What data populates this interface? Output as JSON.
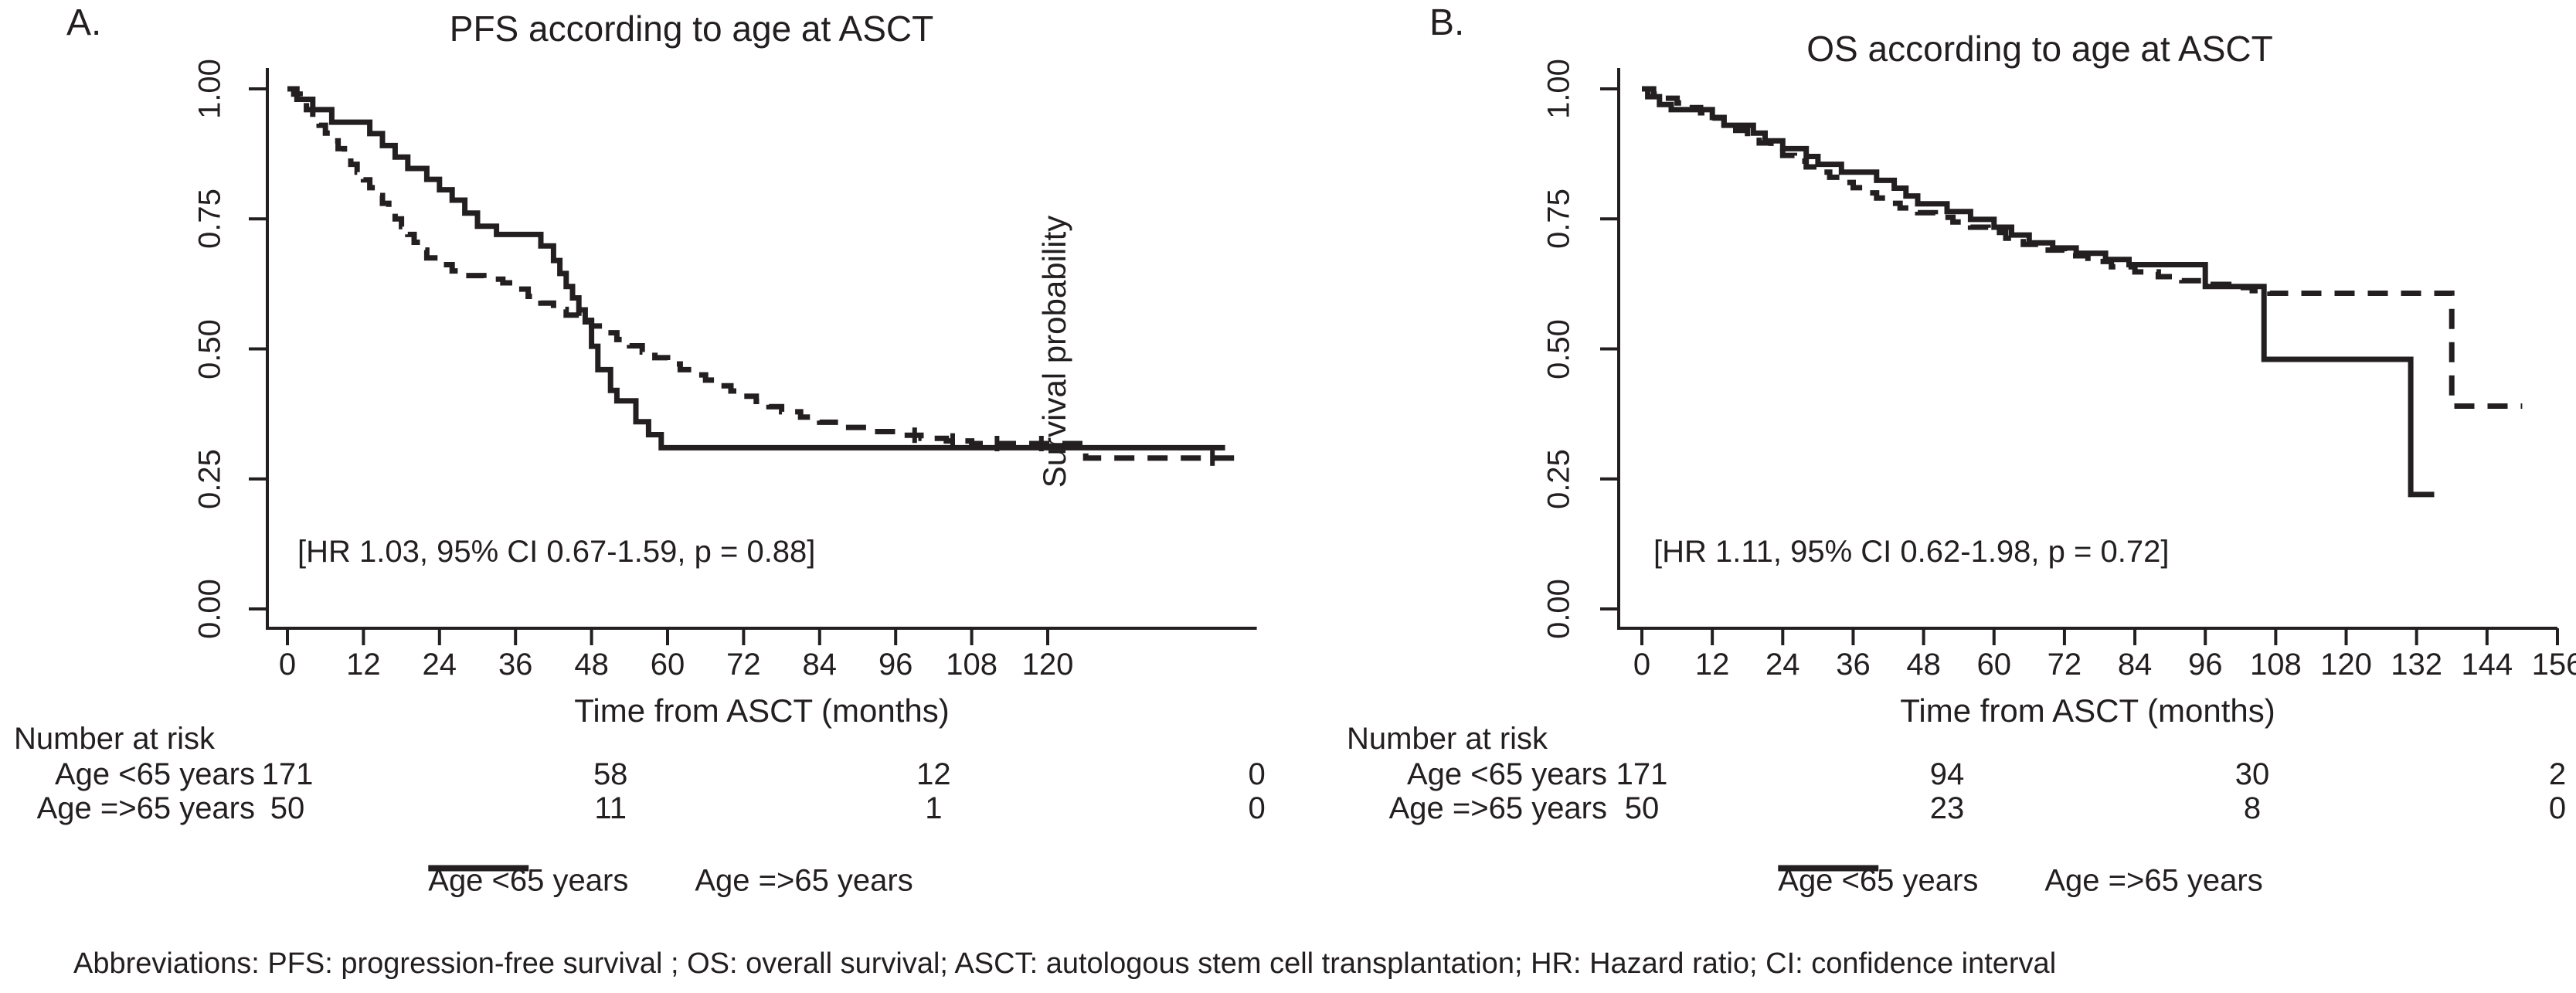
{
  "figure": {
    "panel_a_label": "A.",
    "panel_b_label": "B.",
    "y_axis_label": "Survival probability",
    "footer": "Abbreviations: PFS: progression-free survival ; OS: overall survival; ASCT: autologous stem cell transplantation; HR: Hazard ratio; CI: confidence interval",
    "colors": {
      "line": "#231f20",
      "background": "#ffffff"
    }
  },
  "chart_data": [
    {
      "type": "line",
      "subtype": "kaplan-meier-step",
      "panel": "A",
      "title": "PFS according to age at ASCT",
      "xlabel": "Time from ASCT (months)",
      "ylabel": "Survival probability",
      "xticks": [
        0,
        12,
        24,
        36,
        48,
        60,
        72,
        84,
        96,
        108,
        120
      ],
      "xmax": 153,
      "ylim": [
        0,
        1
      ],
      "yticks": [
        {
          "v": 1.0,
          "label": "1.00"
        },
        {
          "v": 0.75,
          "label": "0.75"
        },
        {
          "v": 0.5,
          "label": "0.50"
        },
        {
          "v": 0.25,
          "label": "0.25"
        },
        {
          "v": 0.0,
          "label": "0.00"
        }
      ],
      "grid": false,
      "hr_annotation": "[HR 1.03, 95% CI 0.67-1.59, p = 0.88]",
      "series": [
        {
          "name": "Age <65 years",
          "style": "dashed",
          "points": [
            [
              0,
              1.0
            ],
            [
              1,
              0.99
            ],
            [
              2,
              0.975
            ],
            [
              3,
              0.96
            ],
            [
              4,
              0.945
            ],
            [
              5,
              0.93
            ],
            [
              6,
              0.915
            ],
            [
              7,
              0.9
            ],
            [
              8,
              0.885
            ],
            [
              9,
              0.87
            ],
            [
              10,
              0.855
            ],
            [
              11,
              0.84
            ],
            [
              12,
              0.825
            ],
            [
              13,
              0.81
            ],
            [
              14,
              0.795
            ],
            [
              15,
              0.78
            ],
            [
              16,
              0.765
            ],
            [
              17,
              0.75
            ],
            [
              18,
              0.735
            ],
            [
              19,
              0.72
            ],
            [
              20,
              0.705
            ],
            [
              21,
              0.69
            ],
            [
              22,
              0.675
            ],
            [
              24,
              0.662
            ],
            [
              26,
              0.65
            ],
            [
              28,
              0.641
            ],
            [
              31,
              0.634
            ],
            [
              34,
              0.627
            ],
            [
              36,
              0.615
            ],
            [
              38,
              0.601
            ],
            [
              40,
              0.588
            ],
            [
              42,
              0.576
            ],
            [
              44,
              0.565
            ],
            [
              46,
              0.555
            ],
            [
              48,
              0.544
            ],
            [
              50,
              0.531
            ],
            [
              52,
              0.518
            ],
            [
              54,
              0.506
            ],
            [
              56,
              0.494
            ],
            [
              58,
              0.483
            ],
            [
              60,
              0.471
            ],
            [
              62,
              0.46
            ],
            [
              64,
              0.45
            ],
            [
              66,
              0.44
            ],
            [
              68,
              0.429
            ],
            [
              70,
              0.419
            ],
            [
              72,
              0.409
            ],
            [
              74,
              0.399
            ],
            [
              76,
              0.389
            ],
            [
              78,
              0.379
            ],
            [
              81,
              0.369
            ],
            [
              84,
              0.359
            ],
            [
              88,
              0.349
            ],
            [
              92,
              0.341
            ],
            [
              96,
              0.334
            ],
            [
              100,
              0.328
            ],
            [
              104,
              0.323
            ],
            [
              108,
              0.318
            ],
            [
              126,
              0.29
            ]
          ],
          "end": 150,
          "censors": [
            99,
            105,
            112,
            119,
            146
          ]
        },
        {
          "name": "Age =>65 years",
          "style": "solid",
          "points": [
            [
              0,
              1.0
            ],
            [
              1.5,
              0.98
            ],
            [
              4,
              0.96
            ],
            [
              7,
              0.936
            ],
            [
              13,
              0.914
            ],
            [
              15,
              0.891
            ],
            [
              17,
              0.869
            ],
            [
              19,
              0.847
            ],
            [
              22,
              0.826
            ],
            [
              24,
              0.806
            ],
            [
              26,
              0.786
            ],
            [
              28,
              0.761
            ],
            [
              30,
              0.736
            ],
            [
              33,
              0.72
            ],
            [
              40,
              0.698
            ],
            [
              42,
              0.67
            ],
            [
              43,
              0.645
            ],
            [
              44,
              0.62
            ],
            [
              45,
              0.598
            ],
            [
              46,
              0.575
            ],
            [
              47,
              0.552
            ],
            [
              48,
              0.505
            ],
            [
              49,
              0.46
            ],
            [
              51,
              0.42
            ],
            [
              52,
              0.4
            ],
            [
              55,
              0.36
            ],
            [
              57,
              0.335
            ],
            [
              59,
              0.31
            ]
          ],
          "end": 148,
          "censors": []
        }
      ],
      "risk_table": {
        "header": "Number at risk",
        "times": [
          0,
          51,
          102,
          153
        ],
        "rows": [
          {
            "label": "Age <65 years",
            "counts": [
              "171",
              "58",
              "12",
              "0"
            ]
          },
          {
            "label": "Age =>65 years",
            "counts": [
              "50",
              "11",
              "1",
              "0"
            ]
          }
        ]
      },
      "legend": [
        {
          "label": "Age <65 years",
          "style": "dashed"
        },
        {
          "label": "Age =>65 years",
          "style": "solid"
        }
      ]
    },
    {
      "type": "line",
      "subtype": "kaplan-meier-step",
      "panel": "B",
      "title": "OS according to age at ASCT",
      "xlabel": "Time from ASCT (months)",
      "ylabel": "Survival probability",
      "xticks": [
        0,
        12,
        24,
        36,
        48,
        60,
        72,
        84,
        96,
        108,
        120,
        132,
        144,
        156
      ],
      "xmax": 156,
      "ylim": [
        0,
        1
      ],
      "yticks": [
        {
          "v": 1.0,
          "label": "1.00"
        },
        {
          "v": 0.75,
          "label": "0.75"
        },
        {
          "v": 0.5,
          "label": "0.50"
        },
        {
          "v": 0.25,
          "label": "0.25"
        },
        {
          "v": 0.0,
          "label": "0.00"
        }
      ],
      "grid": false,
      "hr_annotation": "[HR 1.11, 95% CI 0.62-1.98, p = 0.72]",
      "series": [
        {
          "name": "Age <65 years",
          "style": "dashed",
          "points": [
            [
              0,
              1.0
            ],
            [
              2,
              0.99
            ],
            [
              4,
              0.982
            ],
            [
              6,
              0.973
            ],
            [
              8,
              0.964
            ],
            [
              10,
              0.954
            ],
            [
              12,
              0.944
            ],
            [
              14,
              0.932
            ],
            [
              16,
              0.92
            ],
            [
              18,
              0.908
            ],
            [
              20,
              0.896
            ],
            [
              22,
              0.884
            ],
            [
              24,
              0.872
            ],
            [
              26,
              0.861
            ],
            [
              28,
              0.85
            ],
            [
              30,
              0.84
            ],
            [
              32,
              0.83
            ],
            [
              34,
              0.82
            ],
            [
              36,
              0.81
            ],
            [
              38,
              0.8
            ],
            [
              40,
              0.79
            ],
            [
              42,
              0.78
            ],
            [
              44,
              0.771
            ],
            [
              47,
              0.762
            ],
            [
              50,
              0.753
            ],
            [
              53,
              0.744
            ],
            [
              56,
              0.734
            ],
            [
              59,
              0.724
            ],
            [
              62,
              0.713
            ],
            [
              65,
              0.701
            ],
            [
              68,
              0.69
            ],
            [
              72,
              0.679
            ],
            [
              76,
              0.668
            ],
            [
              80,
              0.658
            ],
            [
              84,
              0.648
            ],
            [
              88,
              0.639
            ],
            [
              92,
              0.631
            ],
            [
              96,
              0.624
            ],
            [
              100,
              0.618
            ],
            [
              104,
              0.612
            ],
            [
              107,
              0.607
            ],
            [
              138,
              0.39
            ]
          ],
          "end": 150,
          "censors": []
        },
        {
          "name": "Age =>65 years",
          "style": "solid",
          "points": [
            [
              0,
              1.0
            ],
            [
              1,
              0.985
            ],
            [
              3,
              0.97
            ],
            [
              5,
              0.96
            ],
            [
              12,
              0.945
            ],
            [
              14,
              0.93
            ],
            [
              19,
              0.915
            ],
            [
              21,
              0.9
            ],
            [
              24,
              0.885
            ],
            [
              28,
              0.87
            ],
            [
              30,
              0.855
            ],
            [
              34,
              0.84
            ],
            [
              40,
              0.824
            ],
            [
              43,
              0.809
            ],
            [
              45,
              0.794
            ],
            [
              47,
              0.779
            ],
            [
              52,
              0.764
            ],
            [
              56,
              0.749
            ],
            [
              60,
              0.734
            ],
            [
              63,
              0.719
            ],
            [
              66,
              0.704
            ],
            [
              70,
              0.694
            ],
            [
              74,
              0.684
            ],
            [
              79,
              0.672
            ],
            [
              83,
              0.662
            ],
            [
              96,
              0.62
            ],
            [
              106,
              0.48
            ],
            [
              131,
              0.22
            ]
          ],
          "end": 135,
          "censors": []
        }
      ],
      "risk_table": {
        "header": "Number at risk",
        "times": [
          0,
          52,
          104,
          156
        ],
        "rows": [
          {
            "label": "Age <65 years",
            "counts": [
              "171",
              "94",
              "30",
              "2"
            ]
          },
          {
            "label": "Age =>65 years",
            "counts": [
              "50",
              "23",
              "8",
              "0"
            ]
          }
        ]
      },
      "legend": [
        {
          "label": "Age <65 years",
          "style": "dashed"
        },
        {
          "label": "Age =>65 years",
          "style": "solid"
        }
      ]
    }
  ]
}
